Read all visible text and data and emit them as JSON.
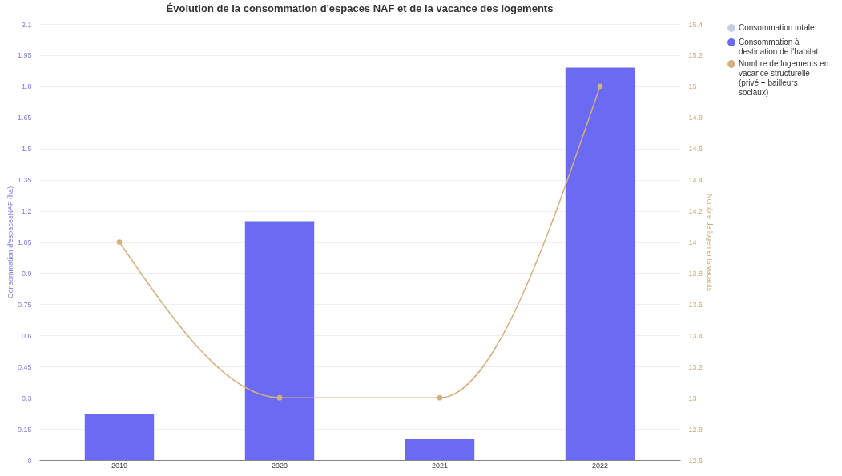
{
  "chart_data": {
    "type": "bar",
    "title": "Évolution de la consommation d'espaces NAF et de la vacance des logements",
    "categories": [
      "2019",
      "2020",
      "2021",
      "2022"
    ],
    "ylabel": "Consommation d'espacesNAF (ha)",
    "y2label": "Nombre de logements vacants",
    "ylim": [
      0,
      2.1
    ],
    "yticks": [
      0,
      0.15,
      0.3,
      0.45,
      0.6,
      0.75,
      0.9,
      1.05,
      1.2,
      1.35,
      1.5,
      1.65,
      1.8,
      1.95,
      2.1
    ],
    "y2lim": [
      12.6,
      15.4
    ],
    "y2ticks": [
      12.6,
      12.8,
      13,
      13.2,
      13.4,
      13.6,
      13.8,
      14,
      14.2,
      14.4,
      14.6,
      14.8,
      15,
      15.2,
      15.4
    ],
    "grid": "y",
    "legend": "right",
    "marker": "circle",
    "series": [
      {
        "name": "Consommation totale",
        "color": "#c8cce8",
        "values": [
          null,
          null,
          null,
          null
        ]
      },
      {
        "name": "Consommation à destination de l'habitat",
        "color": "#6b6af2",
        "values": [
          0.22,
          1.15,
          0.1,
          1.89
        ]
      },
      {
        "name": "Nombre de logements en vacance structurelle (privé + bailleurs sociaux)",
        "color": "#d4b07e",
        "type": "line",
        "axis": "y2",
        "values": [
          14,
          13,
          13,
          15
        ]
      }
    ]
  }
}
